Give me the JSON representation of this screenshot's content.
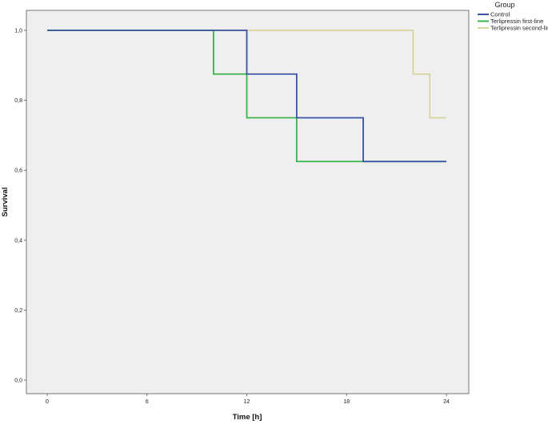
{
  "chart_data": {
    "type": "line",
    "step": true,
    "xlabel": "Time [h]",
    "ylabel": "Survival",
    "xlim": [
      0,
      24
    ],
    "ylim": [
      0,
      1
    ],
    "x_ticks": [
      0,
      6,
      12,
      18,
      24
    ],
    "x_tick_labels": [
      "0",
      "6",
      "12",
      "18",
      "24"
    ],
    "y_ticks": [
      0,
      0.2,
      0.4,
      0.6,
      0.8,
      1.0
    ],
    "y_tick_labels": [
      "0,0",
      "0,2",
      "0,4",
      "0,6",
      "0,8",
      "1,0"
    ],
    "grid": false,
    "background_color": "#efefef",
    "legend": {
      "title": "Group",
      "placement": "outside-top-right"
    },
    "series": [
      {
        "name": "Control",
        "color": "#3a53a4",
        "x": [
          0,
          12,
          15,
          19,
          24
        ],
        "y": [
          1.0,
          0.875,
          0.75,
          0.625,
          0.625
        ]
      },
      {
        "name": "Terlipressin first-line",
        "color": "#3ab54a",
        "x": [
          0,
          10,
          12,
          15,
          24
        ],
        "y": [
          1.0,
          0.875,
          0.75,
          0.625,
          0.625
        ]
      },
      {
        "name": "Terlipressin second-line",
        "color": "#d6d59b",
        "x": [
          0,
          22,
          23,
          24
        ],
        "y": [
          1.0,
          0.875,
          0.75,
          0.75
        ]
      }
    ]
  }
}
